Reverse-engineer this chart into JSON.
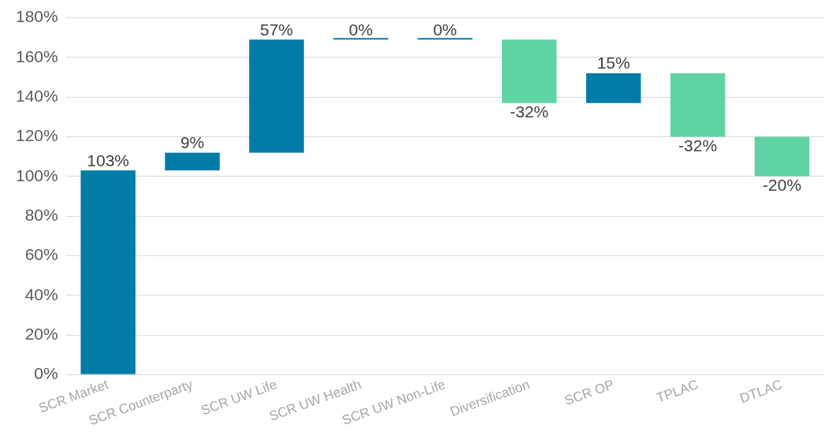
{
  "chart_data": {
    "type": "bar",
    "categories": [
      "SCR Market",
      "SCR Counterparty",
      "SCR UW Life",
      "SCR UW Health",
      "SCR UW Non-Life",
      "Diversification",
      "SCR OP",
      "TPLAC",
      "DTLAC"
    ],
    "values": [
      103,
      9,
      57,
      0,
      0,
      -32,
      15,
      -32,
      -20
    ],
    "base": [
      0,
      103,
      112,
      169,
      169,
      169,
      137,
      152,
      120
    ],
    "colors": [
      "#007ca6",
      "#007ca6",
      "#007ca6",
      "#007ca6",
      "#007ca6",
      "#5fd3a3",
      "#007ca6",
      "#5fd3a3",
      "#5fd3a3"
    ],
    "value_labels": [
      "103%",
      "9%",
      "57%",
      "0%",
      "0%",
      "-32%",
      "15%",
      "-32%",
      "-20%"
    ],
    "ylim": [
      0,
      180
    ],
    "yticks": [
      {
        "value": 0,
        "label": "0%"
      },
      {
        "value": 20,
        "label": "20%"
      },
      {
        "value": 40,
        "label": "40%"
      },
      {
        "value": 60,
        "label": "60%"
      },
      {
        "value": 80,
        "label": "80%"
      },
      {
        "value": 100,
        "label": "100%"
      },
      {
        "value": 120,
        "label": "120%"
      },
      {
        "value": 140,
        "label": "140%"
      },
      {
        "value": 160,
        "label": "160%"
      },
      {
        "value": 180,
        "label": "180%"
      }
    ],
    "grid": "y",
    "legend": false
  }
}
